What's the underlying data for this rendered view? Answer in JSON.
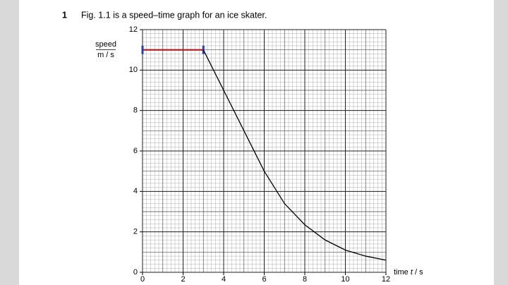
{
  "chart_data": {
    "type": "line",
    "question_number": "1",
    "title": "Fig. 1.1 is a speed–time graph for an ice skater.",
    "ylabel": [
      "speed",
      "m / s"
    ],
    "xlabel": [
      "time ",
      "t",
      " / s"
    ],
    "xlim": [
      0,
      12
    ],
    "ylim": [
      0,
      12
    ],
    "xticks": [
      0,
      2,
      4,
      6,
      8,
      10,
      12
    ],
    "yticks": [
      0,
      2,
      4,
      6,
      8,
      10,
      12
    ],
    "grid": true,
    "minor_grid_step": 0.2,
    "series": [
      {
        "color": "#b0151c",
        "marker_color": "#2c3ea8",
        "x": [
          0,
          3
        ],
        "values": [
          11,
          11
        ]
      },
      {
        "color": "#000000",
        "x": [
          3,
          4,
          5,
          6,
          7,
          8,
          9,
          10,
          11,
          12
        ],
        "values": [
          11,
          9,
          7,
          5,
          3.4,
          2.35,
          1.6,
          1.1,
          0.8,
          0.6
        ]
      }
    ]
  }
}
